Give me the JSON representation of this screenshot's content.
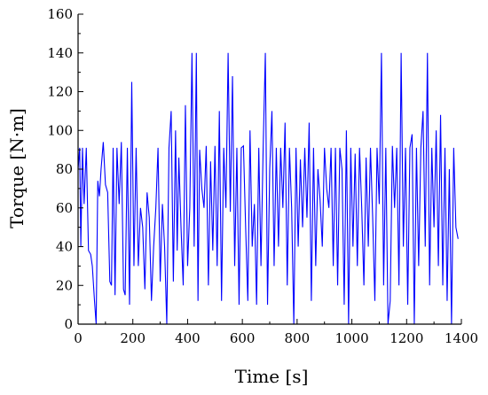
{
  "chart_data": {
    "type": "line",
    "xlabel": "Time [s]",
    "ylabel": "Torque [N·m]",
    "xlim": [
      0,
      1400
    ],
    "ylim": [
      0,
      160
    ],
    "xticks": [
      0,
      200,
      400,
      600,
      800,
      1000,
      1200,
      1400
    ],
    "yticks": [
      0,
      20,
      40,
      60,
      80,
      100,
      120,
      140,
      160
    ],
    "grid": false,
    "series": [
      {
        "color": "#0000ff",
        "x": [
          0,
          6,
          10,
          16,
          22,
          30,
          38,
          46,
          52,
          60,
          66,
          72,
          78,
          84,
          92,
          100,
          108,
          116,
          122,
          128,
          135,
          142,
          150,
          158,
          166,
          172,
          180,
          188,
          196,
          204,
          212,
          220,
          228,
          236,
          244,
          252,
          260,
          268,
          276,
          284,
          292,
          300,
          308,
          316,
          324,
          332,
          340,
          348,
          356,
          362,
          368,
          376,
          384,
          392,
          400,
          408,
          416,
          424,
          432,
          438,
          444,
          452,
          460,
          468,
          476,
          484,
          492,
          500,
          508,
          516,
          524,
          532,
          540,
          548,
          556,
          564,
          572,
          580,
          588,
          596,
          604,
          612,
          620,
          628,
          636,
          644,
          652,
          660,
          668,
          676,
          684,
          692,
          700,
          708,
          716,
          724,
          732,
          740,
          748,
          756,
          764,
          772,
          780,
          788,
          796,
          804,
          812,
          820,
          828,
          836,
          844,
          852,
          860,
          868,
          876,
          884,
          892,
          900,
          908,
          916,
          924,
          932,
          940,
          948,
          956,
          964,
          972,
          980,
          988,
          996,
          1004,
          1012,
          1020,
          1028,
          1036,
          1044,
          1052,
          1060,
          1068,
          1076,
          1084,
          1092,
          1100,
          1108,
          1116,
          1124,
          1132,
          1140,
          1148,
          1156,
          1164,
          1172,
          1180,
          1188,
          1196,
          1204,
          1212,
          1220,
          1228,
          1236,
          1244,
          1252,
          1260,
          1268,
          1276,
          1284,
          1292,
          1300,
          1308,
          1316,
          1324,
          1332,
          1340,
          1348,
          1356,
          1364,
          1372,
          1380,
          1388
        ],
        "y": [
          80,
          91,
          40,
          91,
          62,
          91,
          38,
          36,
          30,
          12,
          0,
          74,
          66,
          80,
          94,
          72,
          68,
          22,
          20,
          91,
          15,
          91,
          62,
          94,
          18,
          15,
          91,
          10,
          125,
          30,
          91,
          30,
          60,
          50,
          18,
          68,
          55,
          12,
          40,
          60,
          91,
          22,
          62,
          40,
          0,
          91,
          110,
          22,
          100,
          38,
          86,
          50,
          20,
          113,
          30,
          60,
          140,
          40,
          140,
          12,
          90,
          70,
          60,
          92,
          20,
          84,
          38,
          92,
          30,
          110,
          12,
          91,
          60,
          140,
          58,
          128,
          30,
          91,
          10,
          91,
          92,
          50,
          12,
          100,
          40,
          62,
          10,
          91,
          30,
          91,
          140,
          10,
          80,
          110,
          30,
          91,
          40,
          91,
          60,
          104,
          20,
          91,
          60,
          0,
          91,
          40,
          85,
          50,
          91,
          55,
          104,
          12,
          91,
          30,
          80,
          64,
          40,
          91,
          70,
          60,
          91,
          30,
          91,
          20,
          91,
          80,
          10,
          100,
          0,
          91,
          40,
          88,
          30,
          91,
          60,
          20,
          86,
          40,
          91,
          55,
          12,
          91,
          62,
          140,
          20,
          91,
          0,
          12,
          92,
          60,
          91,
          20,
          140,
          40,
          91,
          10,
          91,
          98,
          0,
          91,
          30,
          91,
          110,
          40,
          140,
          20,
          91,
          50,
          100,
          30,
          108,
          20,
          91,
          12,
          80,
          0,
          91,
          50,
          44
        ]
      }
    ]
  }
}
